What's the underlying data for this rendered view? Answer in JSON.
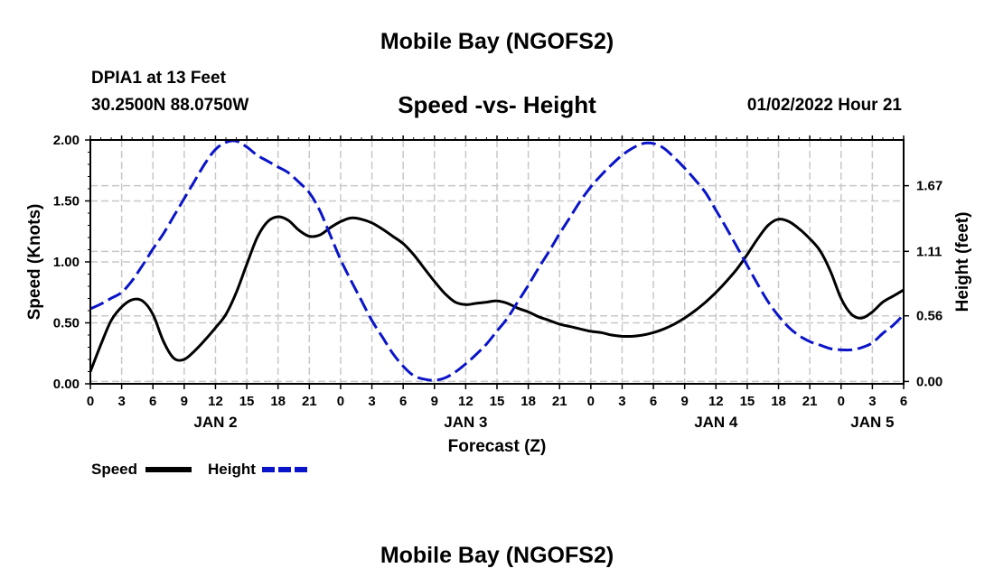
{
  "page": {
    "title_top": "Mobile Bay (NGOFS2)",
    "title_bottom": "Mobile Bay (NGOFS2)",
    "station_line1": "DPIA1 at 13 Feet",
    "station_line2": "30.2500N  88.0750W",
    "timestamp": "01/02/2022 Hour 21"
  },
  "colors": {
    "speed": "#000000",
    "height": "#0a14c8",
    "grid": "#c8c8c8"
  },
  "chart_data": {
    "type": "line",
    "title": "Speed -vs- Height",
    "xlabel": "Forecast (Z)",
    "ylabel": "Speed (Knots)",
    "y2label": "Height (feet)",
    "x_hours_range": [
      0,
      78
    ],
    "x_tick_every_hours": 3,
    "x_tick_labels": [
      "0",
      "3",
      "6",
      "9",
      "12",
      "15",
      "18",
      "21",
      "0",
      "3",
      "6",
      "9",
      "12",
      "15",
      "18",
      "21",
      "0",
      "3",
      "6",
      "9",
      "12",
      "15",
      "18",
      "21",
      "0",
      "3",
      "6"
    ],
    "date_labels": [
      {
        "label": "JAN 2",
        "hour": 12
      },
      {
        "label": "JAN 3",
        "hour": 36
      },
      {
        "label": "JAN 4",
        "hour": 60
      },
      {
        "label": "JAN 5",
        "hour": 75
      }
    ],
    "ylim": [
      0,
      2.0
    ],
    "y_ticks": [
      "0.00",
      "0.50",
      "1.00",
      "1.50",
      "2.00"
    ],
    "y2lim": [
      -0.02,
      2.06
    ],
    "y2_ticks": [
      "0.00",
      "0.56",
      "1.11",
      "1.67"
    ],
    "grid": true,
    "legend_position": "bottom-left",
    "series": [
      {
        "name": "Speed",
        "axis": "left",
        "style": "solid",
        "x": [
          0,
          1,
          2,
          3,
          4,
          5,
          6,
          7,
          8,
          9,
          10,
          11,
          12,
          13,
          14,
          15,
          16,
          17,
          18,
          19,
          20,
          21,
          22,
          23,
          24,
          25,
          26,
          27,
          28,
          29,
          30,
          31,
          32,
          33,
          34,
          35,
          36,
          37,
          38,
          39,
          40,
          41,
          42,
          43,
          44,
          45,
          46,
          47,
          48,
          49,
          50,
          51,
          52,
          53,
          54,
          55,
          56,
          57,
          58,
          59,
          60,
          61,
          62,
          63,
          64,
          65,
          66,
          67,
          68,
          69,
          70,
          71,
          72,
          73,
          74,
          75,
          76,
          77,
          78
        ],
        "values": [
          0.1,
          0.32,
          0.52,
          0.63,
          0.69,
          0.68,
          0.57,
          0.35,
          0.21,
          0.2,
          0.27,
          0.36,
          0.46,
          0.57,
          0.75,
          0.98,
          1.2,
          1.33,
          1.37,
          1.34,
          1.26,
          1.21,
          1.22,
          1.28,
          1.33,
          1.36,
          1.35,
          1.32,
          1.27,
          1.21,
          1.15,
          1.06,
          0.95,
          0.84,
          0.74,
          0.67,
          0.65,
          0.66,
          0.67,
          0.68,
          0.66,
          0.62,
          0.59,
          0.55,
          0.52,
          0.49,
          0.47,
          0.45,
          0.43,
          0.42,
          0.4,
          0.39,
          0.39,
          0.4,
          0.42,
          0.45,
          0.49,
          0.54,
          0.6,
          0.67,
          0.75,
          0.84,
          0.94,
          1.06,
          1.19,
          1.3,
          1.35,
          1.33,
          1.27,
          1.19,
          1.09,
          0.92,
          0.7,
          0.57,
          0.54,
          0.59,
          0.67,
          0.72,
          0.77
        ]
      },
      {
        "name": "Height",
        "axis": "right",
        "style": "dashed",
        "x": [
          0,
          1,
          2,
          3,
          4,
          5,
          6,
          7,
          8,
          9,
          10,
          11,
          12,
          13,
          14,
          15,
          16,
          17,
          18,
          19,
          20,
          21,
          22,
          23,
          24,
          25,
          26,
          27,
          28,
          29,
          30,
          31,
          32,
          33,
          34,
          35,
          36,
          37,
          38,
          39,
          40,
          41,
          42,
          43,
          44,
          45,
          46,
          47,
          48,
          49,
          50,
          51,
          52,
          53,
          54,
          55,
          56,
          57,
          58,
          59,
          60,
          61,
          62,
          63,
          64,
          65,
          66,
          67,
          68,
          69,
          70,
          71,
          72,
          73,
          74,
          75,
          76,
          77,
          78
        ],
        "values": [
          0.62,
          0.66,
          0.71,
          0.76,
          0.86,
          0.99,
          1.13,
          1.26,
          1.41,
          1.56,
          1.71,
          1.86,
          1.98,
          2.04,
          2.05,
          2.0,
          1.93,
          1.88,
          1.83,
          1.78,
          1.7,
          1.61,
          1.46,
          1.25,
          1.04,
          0.86,
          0.69,
          0.52,
          0.38,
          0.24,
          0.13,
          0.05,
          0.02,
          0.01,
          0.03,
          0.08,
          0.15,
          0.23,
          0.32,
          0.43,
          0.54,
          0.68,
          0.82,
          0.97,
          1.11,
          1.26,
          1.4,
          1.54,
          1.66,
          1.76,
          1.85,
          1.93,
          1.99,
          2.03,
          2.03,
          1.99,
          1.91,
          1.82,
          1.72,
          1.61,
          1.46,
          1.31,
          1.15,
          0.99,
          0.83,
          0.68,
          0.56,
          0.46,
          0.39,
          0.34,
          0.31,
          0.28,
          0.27,
          0.27,
          0.29,
          0.33,
          0.41,
          0.48,
          0.57
        ]
      }
    ]
  }
}
